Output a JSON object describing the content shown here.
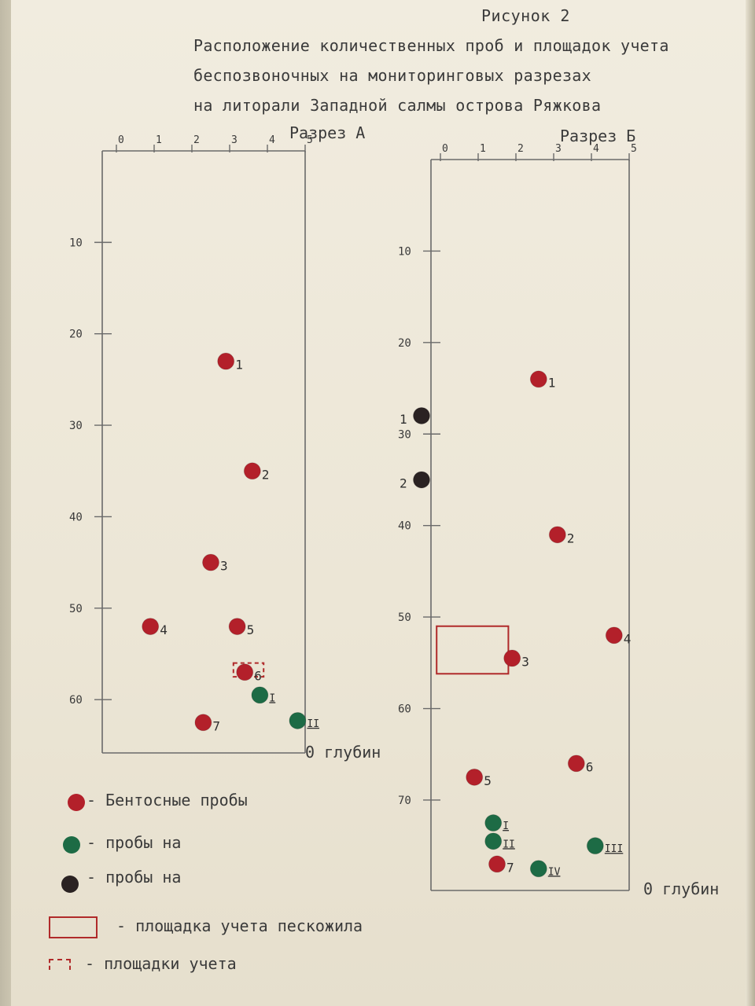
{
  "figure": {
    "label": "Рисунок 2",
    "title_lines": [
      "Расположение количественных проб и площадок учета",
      "беспозвоночных на мониторинговых  разрезах",
      "на литорали Западной салмы острова Ряжкова"
    ]
  },
  "colors": {
    "red": "#b3202a",
    "green": "#1d6b45",
    "black": "#2a2222",
    "line": "#6a6a6a"
  },
  "sections": [
    {
      "name": "Разрез А",
      "xlim": [
        0,
        5
      ],
      "ylim": [
        0,
        66
      ],
      "x_ticks": [
        "0",
        "1",
        "2",
        "3",
        "4",
        "5"
      ],
      "y_ticks": [
        "10",
        "20",
        "30",
        "40",
        "50",
        "60"
      ],
      "depth_label": "0 глубин",
      "points": [
        {
          "label": "1",
          "type": "red",
          "x": 2.9,
          "y": 23
        },
        {
          "label": "2",
          "type": "red",
          "x": 3.6,
          "y": 35
        },
        {
          "label": "3",
          "type": "red",
          "x": 2.5,
          "y": 45
        },
        {
          "label": "4",
          "type": "red",
          "x": 0.9,
          "y": 52
        },
        {
          "label": "5",
          "type": "red",
          "x": 3.2,
          "y": 52
        },
        {
          "label": "6",
          "type": "red",
          "x": 3.4,
          "y": 57
        },
        {
          "label": "I",
          "type": "green",
          "x": 3.8,
          "y": 59.5
        },
        {
          "label": "7",
          "type": "red",
          "x": 2.3,
          "y": 62.5
        },
        {
          "label": "II",
          "type": "green",
          "x": 4.8,
          "y": 62.3
        }
      ],
      "plots": [
        {
          "kind": "dashed",
          "x": [
            3.1,
            3.9
          ],
          "y": [
            56,
            57.5
          ]
        }
      ]
    },
    {
      "name": "Разрез Б",
      "xlim": [
        0,
        5
      ],
      "ylim": [
        0,
        81
      ],
      "x_ticks": [
        "0",
        "1",
        "2",
        "3",
        "4",
        "5"
      ],
      "y_ticks": [
        "10",
        "20",
        "30",
        "40",
        "50",
        "60",
        "70"
      ],
      "depth_label": "0 глубин",
      "points": [
        {
          "label": "1",
          "type": "red",
          "x": 2.6,
          "y": 24
        },
        {
          "label": "1",
          "type": "black",
          "x": -0.5,
          "y": 28
        },
        {
          "label": "2",
          "type": "black",
          "x": -0.5,
          "y": 35
        },
        {
          "label": "2",
          "type": "red",
          "x": 3.1,
          "y": 41
        },
        {
          "label": "4",
          "type": "red",
          "x": 4.6,
          "y": 52
        },
        {
          "label": "3",
          "type": "red",
          "x": 1.9,
          "y": 54.5
        },
        {
          "label": "6",
          "type": "red",
          "x": 3.6,
          "y": 66
        },
        {
          "label": "5",
          "type": "red",
          "x": 0.9,
          "y": 67.5
        },
        {
          "label": "I",
          "type": "green",
          "x": 1.4,
          "y": 72.5
        },
        {
          "label": "II",
          "type": "green",
          "x": 1.4,
          "y": 74.5
        },
        {
          "label": "III",
          "type": "green",
          "x": 4.1,
          "y": 75
        },
        {
          "label": "7",
          "type": "red",
          "x": 1.5,
          "y": 77
        },
        {
          "label": "IV",
          "type": "green",
          "x": 2.6,
          "y": 77.5
        }
      ],
      "plots": [
        {
          "kind": "solid",
          "x": [
            -0.1,
            1.8
          ],
          "y": [
            51,
            56.2
          ]
        }
      ]
    }
  ],
  "legend": [
    {
      "marker": "red",
      "text": "- Бентосные пробы"
    },
    {
      "marker": "green",
      "text": "- пробы на"
    },
    {
      "marker": "black",
      "text": "- пробы на"
    },
    {
      "marker": "rect",
      "text": "- площадка учета пескожила"
    },
    {
      "marker": "dashed",
      "text": "- площадки учета"
    }
  ]
}
